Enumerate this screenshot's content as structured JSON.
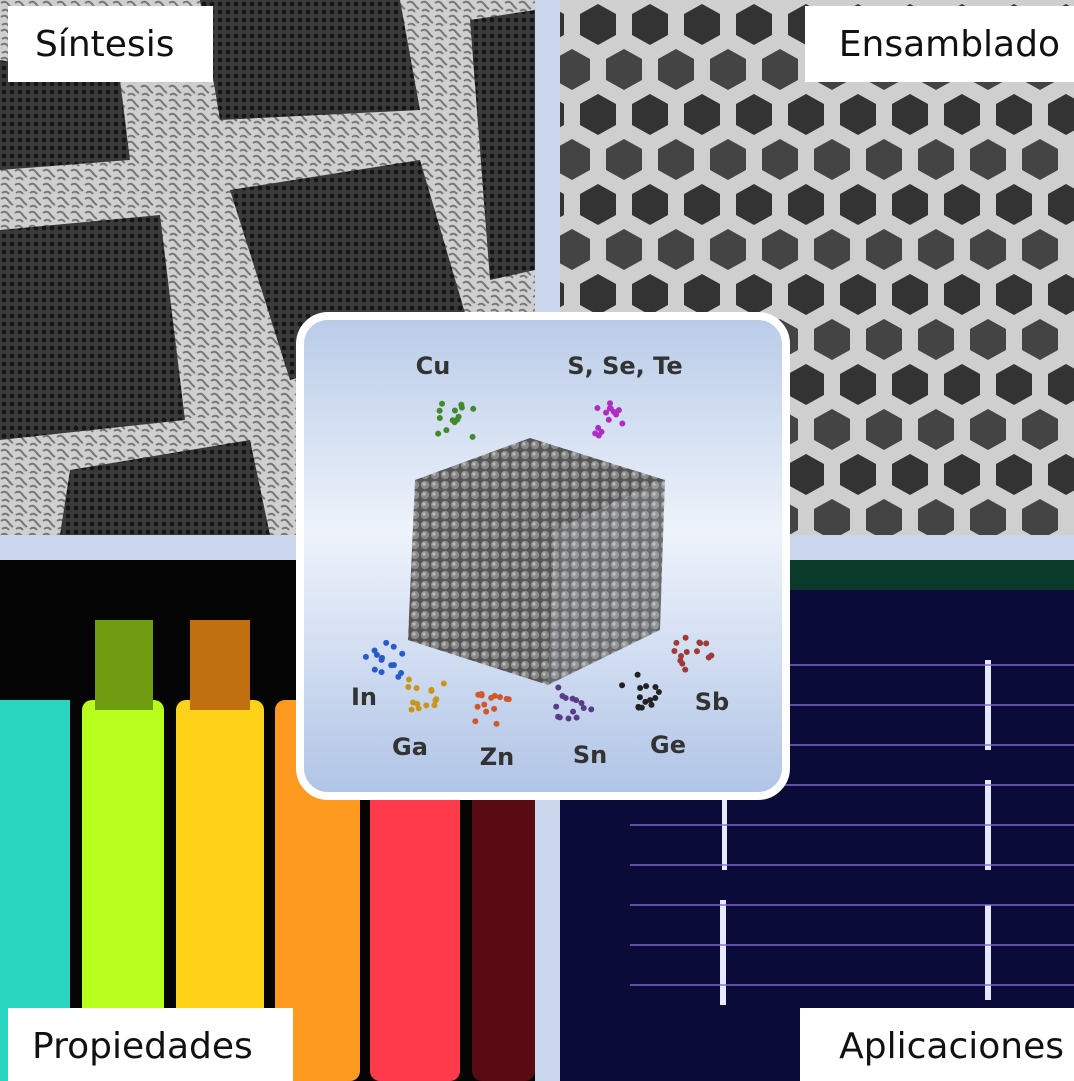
{
  "panels": {
    "top_left": "Síntesis",
    "top_right": "Ensamblado",
    "bottom_left": "Propiedades",
    "bottom_right": "Aplicaciones"
  },
  "elements": [
    "Cu",
    "S, Se, Te",
    "In",
    "Ga",
    "Zn",
    "Sn",
    "Ge",
    "Sb"
  ]
}
